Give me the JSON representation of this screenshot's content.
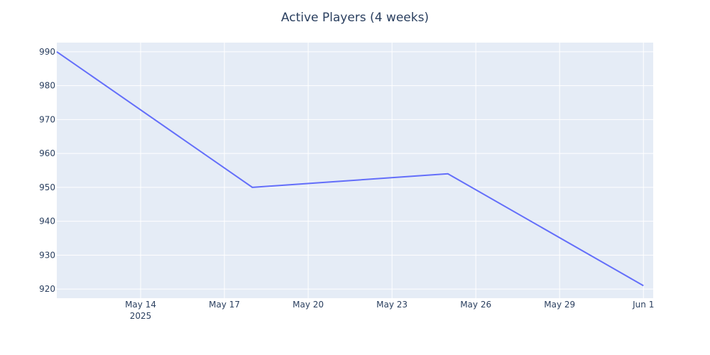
{
  "chart_data": {
    "type": "line",
    "title": "Active Players (4 weeks)",
    "xlabel": "",
    "ylabel": "",
    "x_axis_type": "date",
    "xlim": [
      "2025-05-11",
      "2025-06-01"
    ],
    "ylim": [
      917.3,
      992.7
    ],
    "x_ticks": [
      {
        "date": "2025-05-14",
        "label": "May 14",
        "sublabel": "2025"
      },
      {
        "date": "2025-05-17",
        "label": "May 17",
        "sublabel": ""
      },
      {
        "date": "2025-05-20",
        "label": "May 20",
        "sublabel": ""
      },
      {
        "date": "2025-05-23",
        "label": "May 23",
        "sublabel": ""
      },
      {
        "date": "2025-05-26",
        "label": "May 26",
        "sublabel": ""
      },
      {
        "date": "2025-05-29",
        "label": "May 29",
        "sublabel": ""
      },
      {
        "date": "2025-06-01",
        "label": "Jun 1",
        "sublabel": ""
      }
    ],
    "y_ticks": [
      920,
      930,
      940,
      950,
      960,
      970,
      980,
      990
    ],
    "grid": true,
    "series": [
      {
        "x": [
          "2025-05-11",
          "2025-05-18",
          "2025-05-25",
          "2025-06-01"
        ],
        "y": [
          990,
          950,
          954,
          921
        ],
        "color": "#636efa"
      }
    ],
    "colors": {
      "plot_background": "#e5ecf6",
      "grid": "#ffffff",
      "text": "#2a3f5f"
    }
  }
}
